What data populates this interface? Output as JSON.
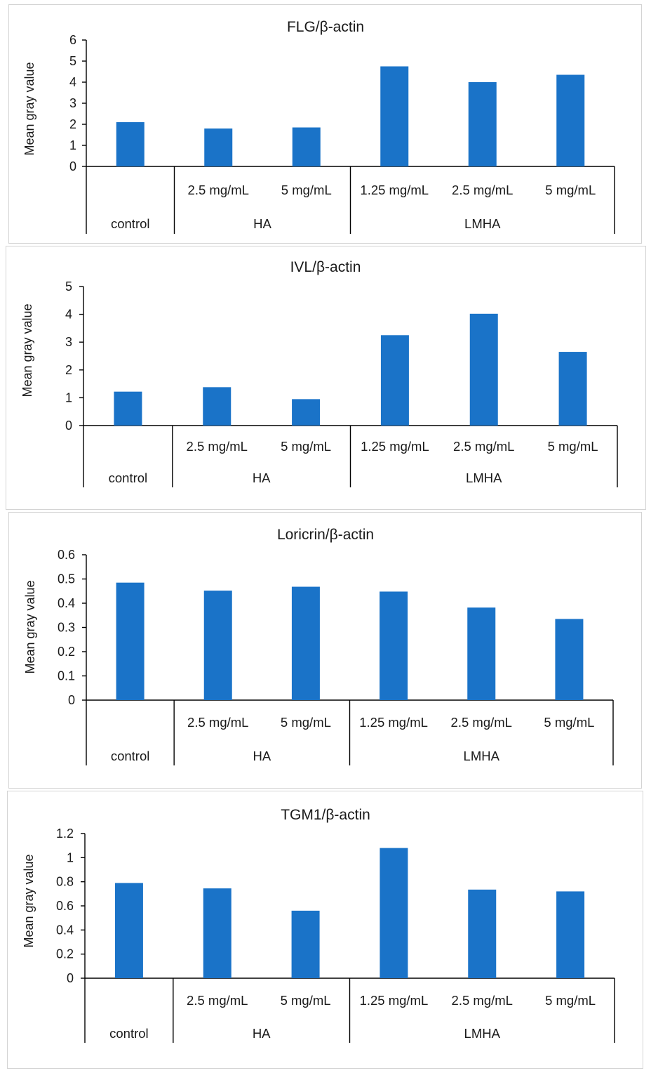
{
  "chart_data": [
    {
      "type": "bar",
      "title": "FLG/β-actin",
      "ylabel": "Mean gray value",
      "ylim": [
        0,
        6
      ],
      "yticks": [
        "0",
        "1",
        "2",
        "3",
        "4",
        "5",
        "6"
      ],
      "categories": [
        "control",
        "2.5 mg/mL",
        "5 mg/mL",
        "1.25 mg/mL",
        "2.5 mg/mL",
        "5 mg/mL"
      ],
      "groups": [
        "control",
        "HA",
        "LMHA"
      ],
      "values": [
        2.1,
        1.8,
        1.85,
        4.75,
        4.0,
        4.35
      ]
    },
    {
      "type": "bar",
      "title": "IVL/β-actin",
      "ylabel": "Mean gray value",
      "ylim": [
        0,
        5
      ],
      "yticks": [
        "0",
        "1",
        "2",
        "3",
        "4",
        "5"
      ],
      "categories": [
        "control",
        "2.5 mg/mL",
        "5 mg/mL",
        "1.25 mg/mL",
        "2.5 mg/mL",
        "5 mg/mL"
      ],
      "groups": [
        "control",
        "HA",
        "LMHA"
      ],
      "values": [
        1.22,
        1.38,
        0.95,
        3.25,
        4.02,
        2.65
      ]
    },
    {
      "type": "bar",
      "title": "Loricrin/β-actin",
      "ylabel": "Mean gray value",
      "ylim": [
        0,
        0.6
      ],
      "yticks": [
        "0",
        "0.1",
        "0.2",
        "0.3",
        "0.4",
        "0.5",
        "0.6"
      ],
      "categories": [
        "control",
        "2.5 mg/mL",
        "5 mg/mL",
        "1.25 mg/mL",
        "2.5 mg/mL",
        "5 mg/mL"
      ],
      "groups": [
        "control",
        "HA",
        "LMHA"
      ],
      "values": [
        0.485,
        0.452,
        0.468,
        0.448,
        0.382,
        0.335
      ]
    },
    {
      "type": "bar",
      "title": "TGM1/β-actin",
      "ylabel": "Mean gray value",
      "ylim": [
        0,
        1.2
      ],
      "yticks": [
        "0",
        "0.2",
        "0.4",
        "0.6",
        "0.8",
        "1",
        "1.2"
      ],
      "categories": [
        "control",
        "2.5 mg/mL",
        "5 mg/mL",
        "1.25 mg/mL",
        "2.5 mg/mL",
        "5 mg/mL"
      ],
      "groups": [
        "control",
        "HA",
        "LMHA"
      ],
      "values": [
        0.79,
        0.745,
        0.56,
        1.08,
        0.735,
        0.72
      ]
    }
  ],
  "colors": {
    "bar": "#1a73c8",
    "axis": "#000000",
    "panel_border": "#d4d4d4"
  }
}
